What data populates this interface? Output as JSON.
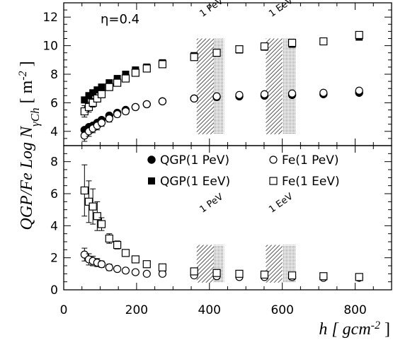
{
  "chart_data": {
    "type": "scatter",
    "ylabel": "QGP/Fe Log N",
    "ylabel_sub": "γCh",
    "ylabel_unit": "[ m",
    "ylabel_unit_sup": "-2",
    "ylabel_unit_close": "]",
    "xlabel": "h [ gcm",
    "xlabel_sup": "-2",
    "xlabel_close": "]",
    "xlim": [
      0,
      900
    ],
    "x_ticks": [
      "0",
      "200",
      "400",
      "600",
      "800"
    ],
    "annotation_eta": "η=0.4",
    "bands": [
      {
        "label": "1 PeV",
        "hatch_range": [
          365,
          412
        ],
        "dotted_range": [
          412,
          440
        ]
      },
      {
        "label": "1 EeV",
        "hatch_range": [
          555,
          600
        ],
        "dotted_range": [
          600,
          637
        ]
      }
    ],
    "legend_position": "lower-panel top-right",
    "legend": [
      {
        "label": "QGP(1 PeV)",
        "marker": "filled-circle"
      },
      {
        "label": "Fe(1 PeV)",
        "marker": "open-circle"
      },
      {
        "label": "QGP(1 EeV)",
        "marker": "filled-square"
      },
      {
        "label": "Fe(1 EeV)",
        "marker": "open-square"
      }
    ],
    "panels": [
      {
        "name": "top",
        "ylim": [
          3,
          13
        ],
        "y_ticks": [
          "4",
          "6",
          "8",
          "10",
          "12"
        ],
        "series": [
          {
            "marker": "filled-circle",
            "x": [
              57,
              69,
              80,
              92,
              104,
              125,
              147,
              170,
              197,
              228,
              271,
              358,
              420,
              482,
              551,
              627,
              713,
              811
            ],
            "y": [
              4.1,
              4.3,
              4.4,
              4.6,
              4.8,
              5.1,
              5.3,
              5.5,
              5.7,
              5.9,
              6.1,
              6.3,
              6.4,
              6.45,
              6.5,
              6.55,
              6.6,
              6.7
            ]
          },
          {
            "marker": "open-circle",
            "x": [
              57,
              69,
              80,
              92,
              104,
              125,
              147,
              170,
              197,
              228,
              271,
              358,
              420,
              482,
              551,
              627,
              713,
              811
            ],
            "y": [
              3.7,
              4.0,
              4.2,
              4.4,
              4.6,
              4.9,
              5.2,
              5.4,
              5.7,
              5.9,
              6.1,
              6.3,
              6.45,
              6.55,
              6.6,
              6.65,
              6.7,
              6.85
            ],
            "yerr": [
              0.4,
              0.35,
              0.3,
              0.3,
              0.25,
              0.25,
              0.2,
              0.2,
              0.15,
              0.15,
              0.15,
              0.1,
              0.1,
              0.1,
              0.1,
              0.1,
              0.1,
              0.1
            ]
          },
          {
            "marker": "filled-square",
            "x": [
              57,
              69,
              80,
              92,
              104,
              125,
              147,
              170,
              197,
              228,
              271,
              358,
              420,
              482,
              551,
              627,
              713,
              811
            ],
            "y": [
              6.2,
              6.5,
              6.7,
              6.9,
              7.1,
              7.4,
              7.7,
              8.0,
              8.3,
              8.5,
              8.8,
              9.3,
              9.5,
              9.7,
              9.9,
              10.1,
              10.3,
              10.6
            ]
          },
          {
            "marker": "open-square",
            "x": [
              57,
              69,
              80,
              92,
              104,
              125,
              147,
              170,
              197,
              228,
              271,
              358,
              420,
              482,
              551,
              627,
              713,
              811
            ],
            "y": [
              5.4,
              5.7,
              6.0,
              6.3,
              6.6,
              7.1,
              7.4,
              7.7,
              8.1,
              8.4,
              8.7,
              9.2,
              9.5,
              9.75,
              9.95,
              10.2,
              10.3,
              10.75
            ],
            "yerr": [
              0.4,
              0.35,
              0.3,
              0.25,
              0.25,
              0.2,
              0.2,
              0.2,
              0.15,
              0.15,
              0.15,
              0.1,
              0.1,
              0.1,
              0.1,
              0.1,
              0.1,
              0.1
            ]
          }
        ]
      },
      {
        "name": "bottom",
        "ylim": [
          0,
          9
        ],
        "y_ticks": [
          "0",
          "2",
          "4",
          "6",
          "8"
        ],
        "series": [
          {
            "marker": "open-circle",
            "x": [
              57,
              69,
              80,
              92,
              104,
              125,
              147,
              170,
              197,
              228,
              271,
              358,
              420,
              482,
              551,
              627,
              713,
              811
            ],
            "y": [
              2.2,
              1.9,
              1.8,
              1.7,
              1.6,
              1.4,
              1.3,
              1.2,
              1.1,
              1.0,
              1.0,
              0.9,
              0.85,
              0.8,
              0.8,
              0.8,
              0.75,
              0.75
            ],
            "yerr": [
              0.4,
              0.35,
              0.3,
              0.25,
              0.2,
              0.2,
              0.15,
              0.15,
              0.15,
              0.1,
              0.1,
              0.1,
              0.1,
              0.1,
              0.1,
              0.1,
              0.1,
              0.1
            ]
          },
          {
            "marker": "open-square",
            "x": [
              57,
              69,
              80,
              92,
              104,
              125,
              147,
              170,
              197,
              228,
              271,
              358,
              420,
              482,
              551,
              627,
              713,
              811
            ],
            "y": [
              6.2,
              5.5,
              5.2,
              4.6,
              4.1,
              3.2,
              2.8,
              2.3,
              1.9,
              1.6,
              1.4,
              1.15,
              1.05,
              1.0,
              0.95,
              0.9,
              0.85,
              0.8
            ],
            "yerr": [
              1.6,
              1.3,
              1.1,
              0.9,
              0.4,
              0.3,
              0.25,
              0.2,
              0.15,
              0.15,
              0.1,
              0.1,
              0.1,
              0.1,
              0.1,
              0.1,
              0.1,
              0.1
            ]
          }
        ]
      }
    ]
  }
}
